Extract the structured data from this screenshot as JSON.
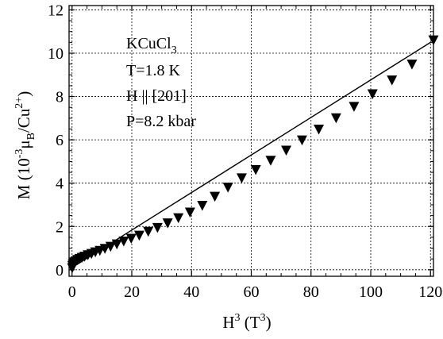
{
  "chart_data": {
    "type": "scatter",
    "title": "",
    "x_axis": {
      "label_main": "H",
      "label_sup": "3",
      "label_unit_open": " (T",
      "label_unit_sup": "3",
      "label_unit_close": ")",
      "range": [
        -1,
        121
      ],
      "ticks": [
        0,
        20,
        40,
        60,
        80,
        100,
        120
      ],
      "tick_labels": [
        "0",
        "20",
        "40",
        "60",
        "80",
        "100",
        "120"
      ]
    },
    "y_axis": {
      "label_main": "M (10",
      "label_exp": "-3",
      "label_mu": "μ",
      "label_mu_sub": "B",
      "label_slash": "/Cu",
      "label_cu_sup": "2+",
      "label_close": ")",
      "range": [
        -0.3,
        12.2
      ],
      "ticks": [
        0,
        2,
        4,
        6,
        8,
        10,
        12
      ],
      "tick_labels": [
        "0",
        "2",
        "4",
        "6",
        "8",
        "10",
        "12"
      ]
    },
    "grid": true,
    "annotation": {
      "compound_main": "KCuCl",
      "compound_sub": "3",
      "lines": [
        "T=1.8 K",
        "H || [201]",
        "P=8.2 kbar"
      ]
    },
    "series": [
      {
        "marker": "down-triangle",
        "color": "#000000",
        "points": [
          [
            0.05,
            0.1
          ],
          [
            0.15,
            0.2
          ],
          [
            0.3,
            0.27
          ],
          [
            0.5,
            0.32
          ],
          [
            0.8,
            0.37
          ],
          [
            1.2,
            0.42
          ],
          [
            1.8,
            0.48
          ],
          [
            2.5,
            0.53
          ],
          [
            3.3,
            0.58
          ],
          [
            4.2,
            0.63
          ],
          [
            5.3,
            0.7
          ],
          [
            6.5,
            0.76
          ],
          [
            7.8,
            0.83
          ],
          [
            9.3,
            0.9
          ],
          [
            11.0,
            0.99
          ],
          [
            12.9,
            1.09
          ],
          [
            15.0,
            1.2
          ],
          [
            17.3,
            1.33
          ],
          [
            19.8,
            1.46
          ],
          [
            22.5,
            1.6
          ],
          [
            25.5,
            1.78
          ],
          [
            28.6,
            1.96
          ],
          [
            32.0,
            2.17
          ],
          [
            35.6,
            2.41
          ],
          [
            39.5,
            2.67
          ],
          [
            43.6,
            2.98
          ],
          [
            47.8,
            3.4
          ],
          [
            52.2,
            3.82
          ],
          [
            56.8,
            4.25
          ],
          [
            61.5,
            4.63
          ],
          [
            66.5,
            5.06
          ],
          [
            71.7,
            5.53
          ],
          [
            77.0,
            6.0
          ],
          [
            82.6,
            6.5
          ],
          [
            88.4,
            7.02
          ],
          [
            94.4,
            7.55
          ],
          [
            100.6,
            8.13
          ],
          [
            107.1,
            8.77
          ],
          [
            113.8,
            9.5
          ],
          [
            121.0,
            10.62
          ]
        ]
      }
    ],
    "fit_line": {
      "style": "solid",
      "color": "#000000",
      "x": [
        0,
        120
      ],
      "y": [
        0.1,
        10.5
      ]
    }
  }
}
